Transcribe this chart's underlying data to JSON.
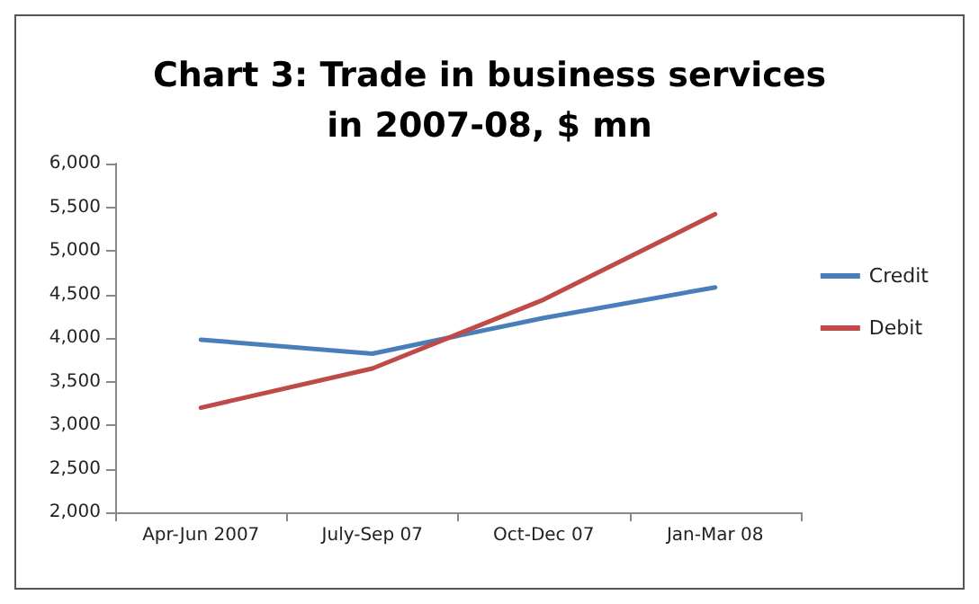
{
  "chart_data": {
    "type": "line",
    "title": "Chart 3: Trade in business services\nin 2007-08, $ mn",
    "categories": [
      "Apr-Jun 2007",
      "July-Sep 07",
      "Oct-Dec 07",
      "Jan-Mar 08"
    ],
    "series": [
      {
        "name": "Credit",
        "color": "#4a7ebb",
        "values": [
          3980,
          3820,
          4230,
          4580
        ]
      },
      {
        "name": "Debit",
        "color": "#be4b48",
        "values": [
          3200,
          3650,
          4440,
          5420
        ]
      }
    ],
    "ylim": [
      2000,
      6000
    ],
    "yticks": [
      {
        "value": 2000,
        "label": "2,000"
      },
      {
        "value": 2500,
        "label": "2,500"
      },
      {
        "value": 3000,
        "label": "3,000"
      },
      {
        "value": 3500,
        "label": "3,500"
      },
      {
        "value": 4000,
        "label": "4,000"
      },
      {
        "value": 4500,
        "label": "4,500"
      },
      {
        "value": 5000,
        "label": "5,000"
      },
      {
        "value": 5500,
        "label": "5,500"
      },
      {
        "value": 6000,
        "label": "6,000"
      }
    ],
    "grid": false,
    "legend": "right",
    "marker": "none",
    "line_style": "solid"
  }
}
